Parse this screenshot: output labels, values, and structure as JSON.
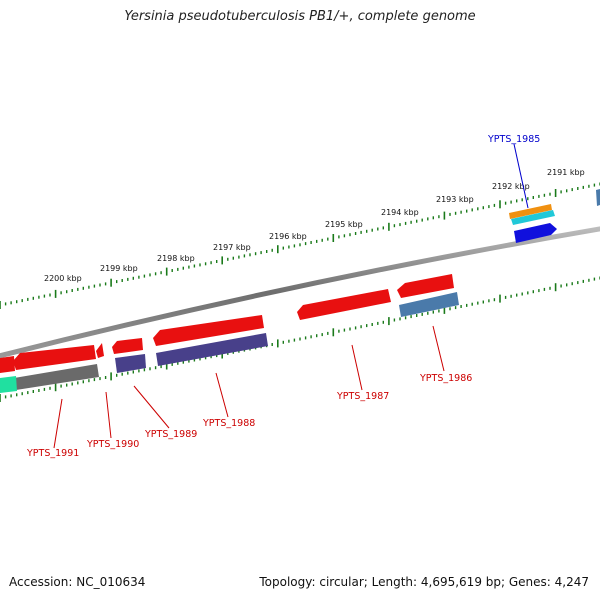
{
  "title": "Yersinia pseudotuberculosis PB1/+, complete genome",
  "accession_text": "Accession: NC_010634",
  "summary_text": "Topology: circular; Length: 4,695,619 bp; Genes: 4,247",
  "kbp_labels": [
    "2191 kbp",
    "2192 kbp",
    "2193 kbp",
    "2194 kbp",
    "2195 kbp",
    "2196 kbp",
    "2197 kbp",
    "2198 kbp",
    "2199 kbp",
    "2200 kbp"
  ],
  "gene_labels": [
    {
      "text": "YPTS_1985",
      "color": "#0000cc"
    },
    {
      "text": "YPTS_1986",
      "color": "#cc0000"
    },
    {
      "text": "YPTS_1987",
      "color": "#cc0000"
    },
    {
      "text": "YPTS_1988",
      "color": "#cc0000"
    },
    {
      "text": "YPTS_1989",
      "color": "#cc0000"
    },
    {
      "text": "YPTS_1990",
      "color": "#cc0000"
    },
    {
      "text": "YPTS_1991",
      "color": "#cc0000"
    }
  ],
  "colors": {
    "tick": "#1a7a1a",
    "backbone": "#7a7a7a",
    "cds_red": "#e81010",
    "cds_purple": "#48408a",
    "cds_blue": "#4a7aaa",
    "cds_darkblue": "#1010dd",
    "cds_orange": "#f09010",
    "cds_cyan": "#20c8d8",
    "cds_teal": "#20e0a0",
    "cds_gray": "#6a6a6a"
  }
}
